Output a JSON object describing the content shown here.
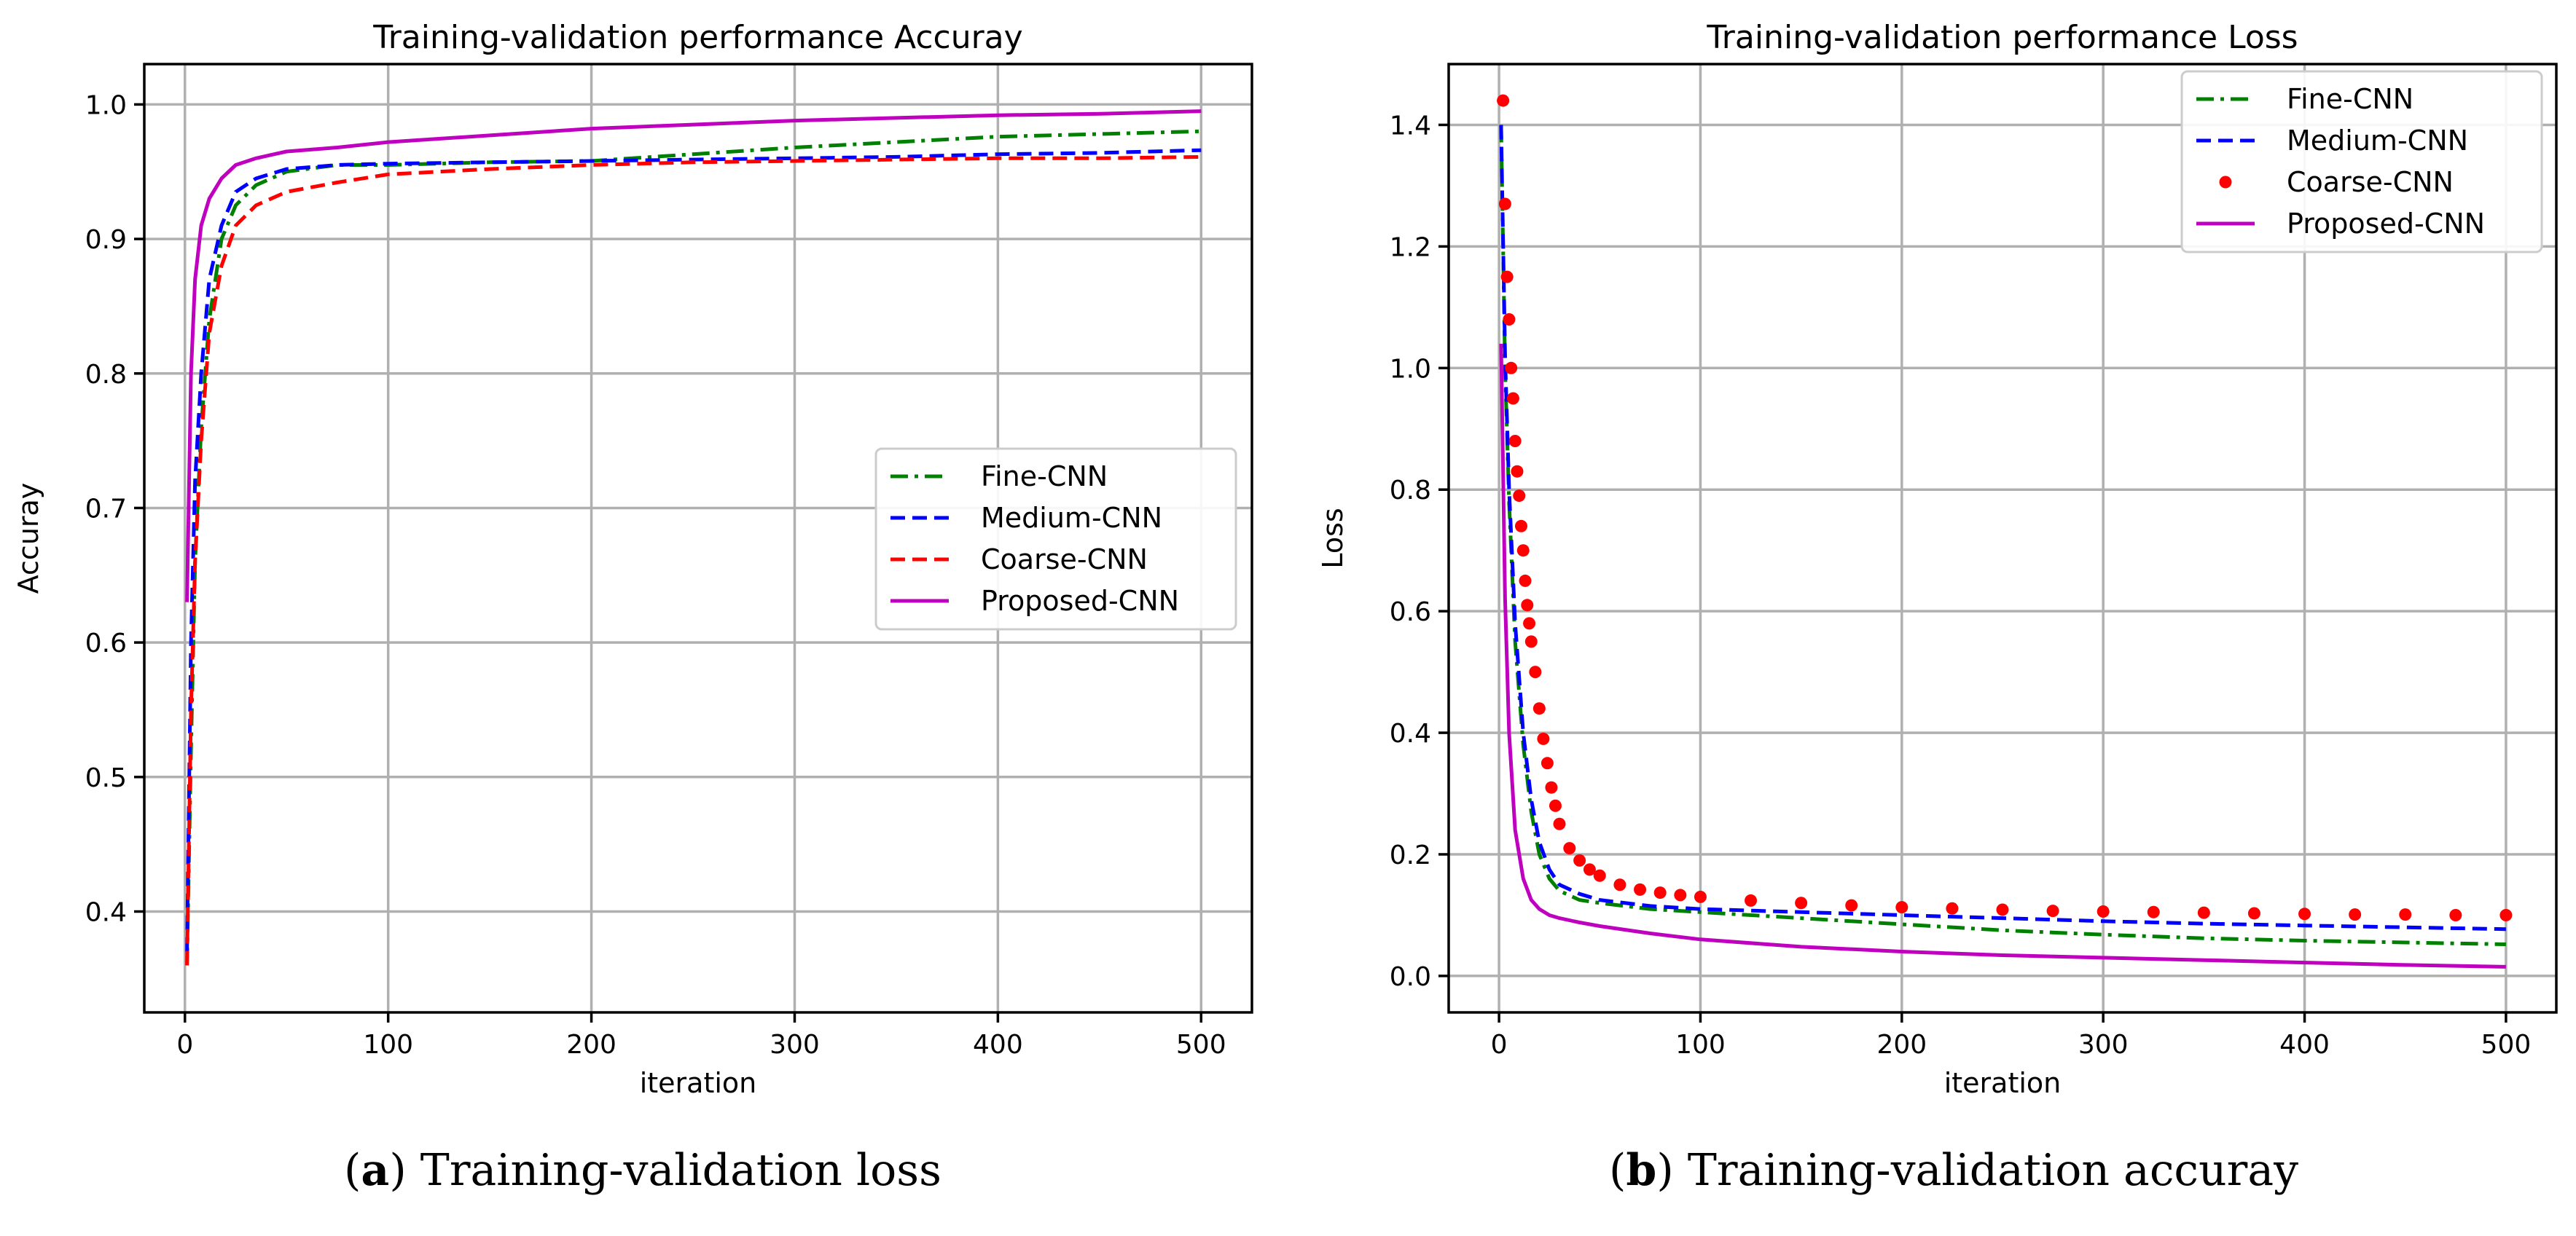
{
  "chart_data": [
    {
      "type": "line",
      "title": "Training-validation performance Accuray",
      "xlabel": "iteration",
      "ylabel": "Accuray",
      "xlim": [
        -20,
        525
      ],
      "ylim": [
        0.325,
        1.03
      ],
      "xticks": [
        0,
        100,
        200,
        300,
        400,
        500
      ],
      "yticks": [
        0.4,
        0.5,
        0.6,
        0.7,
        0.8,
        0.9,
        1.0
      ],
      "grid": true,
      "legend_position": "center-right",
      "series": [
        {
          "name": "Fine-CNN",
          "color": "#008000",
          "style": "dashdot",
          "x": [
            1,
            3,
            5,
            8,
            12,
            18,
            25,
            35,
            50,
            75,
            100,
            150,
            200,
            250,
            300,
            350,
            400,
            450,
            500
          ],
          "y": [
            0.36,
            0.52,
            0.66,
            0.76,
            0.84,
            0.9,
            0.925,
            0.94,
            0.95,
            0.955,
            0.955,
            0.957,
            0.958,
            0.963,
            0.968,
            0.972,
            0.976,
            0.978,
            0.98
          ]
        },
        {
          "name": "Medium-CNN",
          "color": "#0000ff",
          "style": "dashed",
          "x": [
            1,
            3,
            5,
            8,
            12,
            18,
            25,
            35,
            50,
            75,
            100,
            150,
            200,
            250,
            300,
            350,
            400,
            450,
            500
          ],
          "y": [
            0.37,
            0.6,
            0.72,
            0.8,
            0.87,
            0.91,
            0.935,
            0.945,
            0.952,
            0.955,
            0.956,
            0.957,
            0.958,
            0.959,
            0.96,
            0.961,
            0.963,
            0.964,
            0.966
          ]
        },
        {
          "name": "Coarse-CNN",
          "color": "#ff0000",
          "style": "dashed",
          "x": [
            1,
            3,
            5,
            8,
            12,
            18,
            25,
            35,
            50,
            75,
            100,
            150,
            200,
            250,
            300,
            350,
            400,
            450,
            500
          ],
          "y": [
            0.36,
            0.55,
            0.66,
            0.75,
            0.83,
            0.88,
            0.91,
            0.925,
            0.935,
            0.942,
            0.948,
            0.952,
            0.955,
            0.957,
            0.958,
            0.959,
            0.96,
            0.96,
            0.961
          ]
        },
        {
          "name": "Proposed-CNN",
          "color": "#bf00bf",
          "style": "solid",
          "x": [
            1,
            3,
            5,
            8,
            12,
            18,
            25,
            35,
            50,
            75,
            100,
            150,
            200,
            250,
            300,
            350,
            400,
            450,
            500
          ],
          "y": [
            0.63,
            0.8,
            0.87,
            0.91,
            0.93,
            0.945,
            0.955,
            0.96,
            0.965,
            0.968,
            0.972,
            0.977,
            0.982,
            0.985,
            0.988,
            0.99,
            0.992,
            0.993,
            0.995
          ]
        }
      ]
    },
    {
      "type": "line",
      "title": "Training-validation performance Loss",
      "xlabel": "iteration",
      "ylabel": "Loss",
      "xlim": [
        -25,
        525
      ],
      "ylim": [
        -0.06,
        1.5
      ],
      "xticks": [
        0,
        100,
        200,
        300,
        400,
        500
      ],
      "yticks": [
        0.0,
        0.2,
        0.4,
        0.6,
        0.8,
        1.0,
        1.2,
        1.4
      ],
      "grid": true,
      "legend_position": "top-right",
      "series": [
        {
          "name": "Fine-CNN",
          "color": "#008000",
          "style": "dashdot",
          "x": [
            1,
            3,
            5,
            8,
            12,
            16,
            20,
            25,
            30,
            40,
            50,
            75,
            100,
            150,
            200,
            250,
            300,
            350,
            400,
            450,
            500
          ],
          "y": [
            1.4,
            1.0,
            0.78,
            0.55,
            0.38,
            0.27,
            0.2,
            0.16,
            0.14,
            0.125,
            0.12,
            0.11,
            0.105,
            0.095,
            0.085,
            0.075,
            0.068,
            0.062,
            0.058,
            0.055,
            0.052
          ]
        },
        {
          "name": "Medium-CNN",
          "color": "#0000ff",
          "style": "dashed",
          "x": [
            1,
            3,
            5,
            8,
            12,
            16,
            20,
            25,
            30,
            40,
            50,
            75,
            100,
            150,
            200,
            250,
            300,
            350,
            400,
            450,
            500
          ],
          "y": [
            1.4,
            1.02,
            0.8,
            0.58,
            0.4,
            0.29,
            0.22,
            0.175,
            0.15,
            0.135,
            0.125,
            0.115,
            0.11,
            0.105,
            0.1,
            0.095,
            0.09,
            0.086,
            0.083,
            0.08,
            0.077
          ]
        },
        {
          "name": "Coarse-CNN",
          "color": "#ff0000",
          "style": "dots",
          "x": [
            2,
            3,
            4,
            5,
            6,
            7,
            8,
            9,
            10,
            11,
            12,
            13,
            14,
            15,
            16,
            18,
            20,
            22,
            24,
            26,
            28,
            30,
            35,
            40,
            45,
            50,
            60,
            70,
            80,
            90,
            100,
            125,
            150,
            175,
            200,
            225,
            250,
            275,
            300,
            325,
            350,
            375,
            400,
            425,
            450,
            475,
            500
          ],
          "y": [
            1.44,
            1.27,
            1.15,
            1.08,
            1.0,
            0.95,
            0.88,
            0.83,
            0.79,
            0.74,
            0.7,
            0.65,
            0.61,
            0.58,
            0.55,
            0.5,
            0.44,
            0.39,
            0.35,
            0.31,
            0.28,
            0.25,
            0.21,
            0.19,
            0.175,
            0.165,
            0.15,
            0.142,
            0.137,
            0.133,
            0.13,
            0.124,
            0.12,
            0.116,
            0.113,
            0.111,
            0.109,
            0.107,
            0.106,
            0.105,
            0.104,
            0.103,
            0.102,
            0.101,
            0.101,
            0.1,
            0.1
          ]
        },
        {
          "name": "Proposed-CNN",
          "color": "#bf00bf",
          "style": "solid",
          "x": [
            1,
            3,
            5,
            8,
            12,
            16,
            20,
            25,
            30,
            40,
            50,
            75,
            100,
            150,
            200,
            250,
            300,
            350,
            400,
            450,
            500
          ],
          "y": [
            1.04,
            0.62,
            0.4,
            0.24,
            0.16,
            0.125,
            0.11,
            0.1,
            0.095,
            0.088,
            0.082,
            0.07,
            0.06,
            0.048,
            0.04,
            0.034,
            0.03,
            0.026,
            0.022,
            0.018,
            0.015
          ]
        }
      ]
    }
  ],
  "captions": [
    {
      "letter": "a",
      "text": " Training-validation loss"
    },
    {
      "letter": "b",
      "text": " Training-validation accuray"
    }
  ]
}
